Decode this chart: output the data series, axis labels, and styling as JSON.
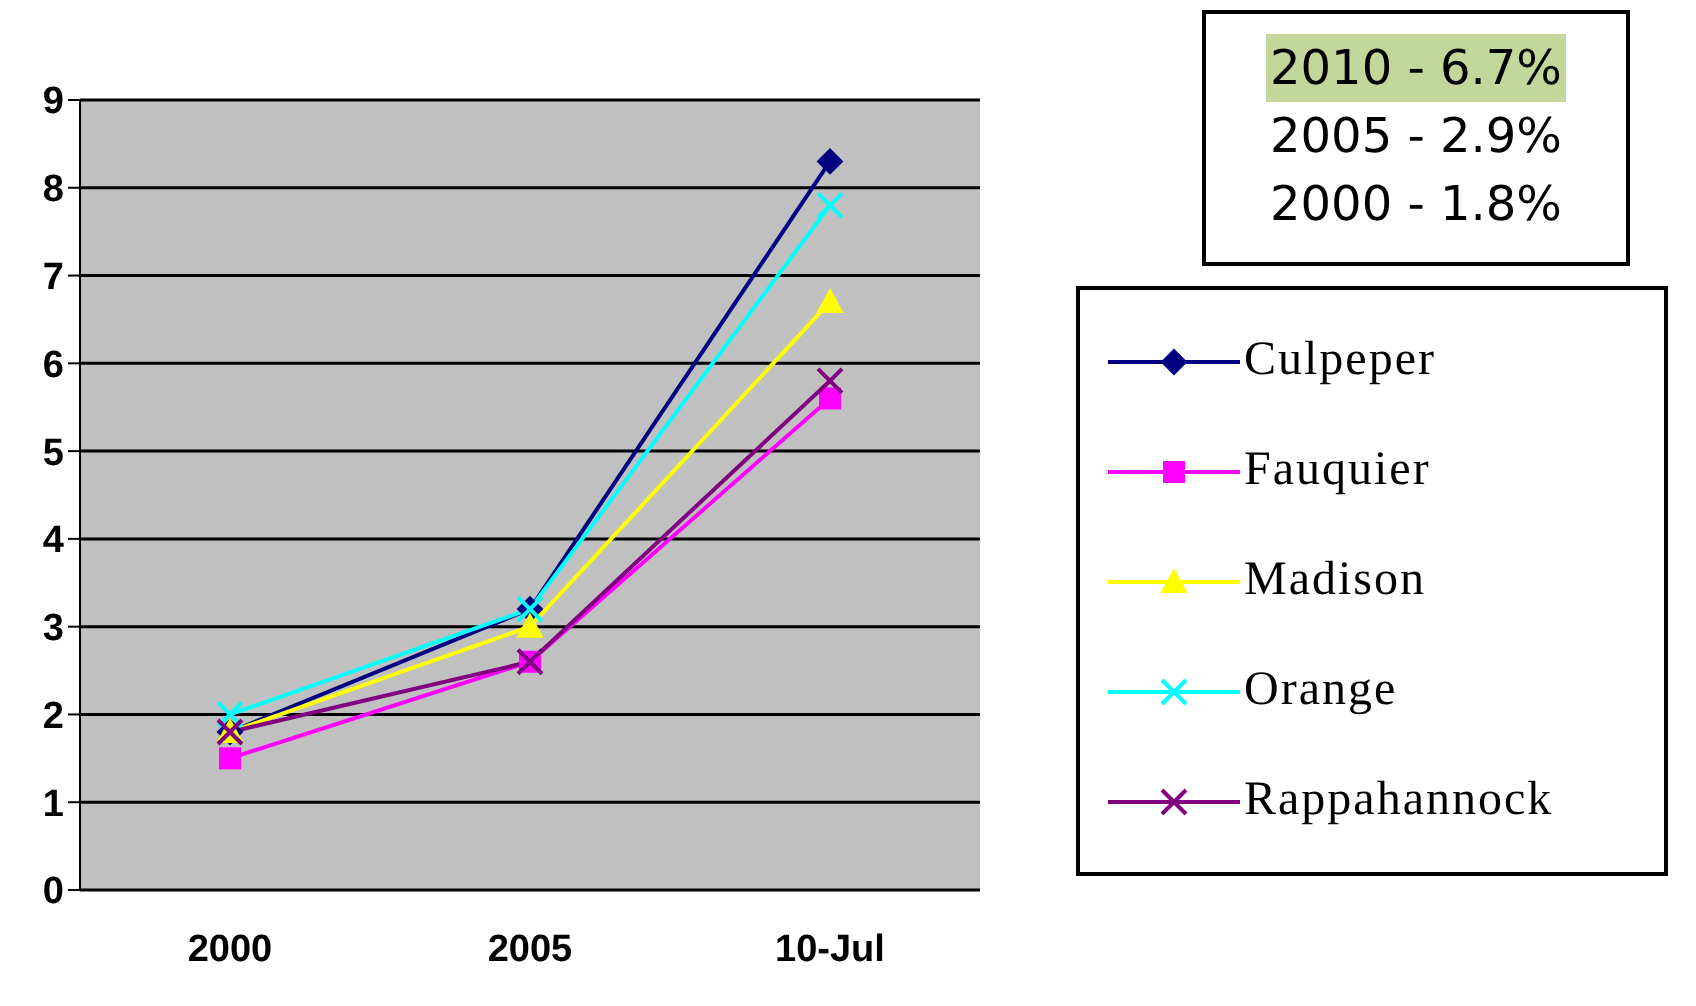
{
  "chart_data": {
    "type": "line",
    "categories": [
      "2000",
      "2005",
      "10-Jul"
    ],
    "series": [
      {
        "name": "Culpeper",
        "color": "#000080",
        "marker": "diamond",
        "values": [
          1.8,
          3.2,
          8.3
        ]
      },
      {
        "name": "Fauquier",
        "color": "#ff00ff",
        "marker": "square",
        "values": [
          1.5,
          2.6,
          5.6
        ]
      },
      {
        "name": "Madison",
        "color": "#ffff00",
        "marker": "triangle",
        "values": [
          1.8,
          3.0,
          6.7
        ]
      },
      {
        "name": "Orange",
        "color": "#00ffff",
        "marker": "cross",
        "values": [
          2.0,
          3.2,
          7.8
        ]
      },
      {
        "name": "Rappahannock",
        "color": "#800080",
        "marker": "cross",
        "values": [
          1.8,
          2.6,
          5.8
        ]
      }
    ],
    "ylim": [
      0,
      9
    ],
    "yticks": [
      0,
      1,
      2,
      3,
      4,
      5,
      6,
      7,
      8,
      9
    ],
    "grid": "y",
    "legend": "right",
    "annotations": [
      "2010 - 6.7%",
      "2005 - 2.9%",
      "2000 - 1.8%"
    ]
  }
}
